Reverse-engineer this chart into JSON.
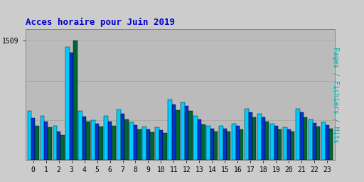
{
  "title": "Acces horaire pour Juin 2019",
  "ylabel": "Pages / Fichiers / Hits",
  "xlabel_values": [
    0,
    1,
    2,
    3,
    4,
    5,
    6,
    7,
    8,
    9,
    10,
    11,
    12,
    13,
    14,
    15,
    16,
    17,
    18,
    19,
    20,
    21,
    22,
    23
  ],
  "hits": [
    620,
    560,
    430,
    1430,
    620,
    500,
    560,
    640,
    480,
    420,
    410,
    760,
    730,
    560,
    430,
    430,
    460,
    650,
    580,
    460,
    410,
    650,
    510,
    480
  ],
  "fichiers": [
    530,
    490,
    360,
    1350,
    550,
    460,
    490,
    580,
    440,
    390,
    380,
    700,
    680,
    510,
    400,
    400,
    430,
    600,
    540,
    430,
    390,
    600,
    470,
    440
  ],
  "pages": [
    430,
    410,
    320,
    1509,
    490,
    420,
    430,
    510,
    390,
    350,
    340,
    630,
    620,
    450,
    360,
    360,
    390,
    540,
    490,
    390,
    360,
    540,
    420,
    400
  ],
  "pages_color": "#006633",
  "fichiers_color": "#0033cc",
  "hits_color": "#00ccff",
  "bg_color": "#cccccc",
  "plot_bg_color": "#bbbbbb",
  "title_color": "#0000cc",
  "ylabel_color": "#00aaaa",
  "ytick_label": "1509",
  "bar_width": 0.3,
  "ylim_max": 1650,
  "grid_levels": [
    500,
    1000
  ]
}
